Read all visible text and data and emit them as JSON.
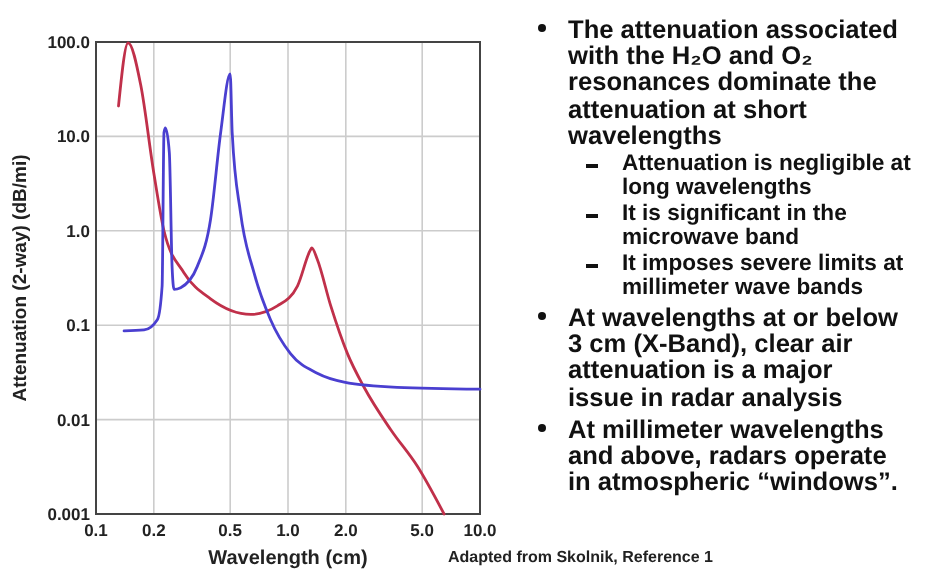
{
  "chart_data": {
    "type": "line",
    "xlabel": "Wavelength (cm)",
    "ylabel": "Attenuation (2-way) (dB/mi)",
    "log": "xy",
    "grid": true,
    "marker": "none",
    "line_style": "solid",
    "xlim": [
      0.1,
      10
    ],
    "ylim": [
      0.001,
      100
    ],
    "xticks": [
      0.1,
      0.2,
      0.5,
      {
        "value": 1,
        "label": "1.0"
      },
      {
        "value": 2,
        "label": "2.0"
      },
      {
        "value": 5,
        "label": "5.0"
      },
      {
        "value": 10,
        "label": "10.0"
      }
    ],
    "yticks": [
      0.001,
      0.01,
      0.1,
      {
        "value": 1,
        "label": "1.0"
      },
      {
        "value": 10,
        "label": "10.0"
      },
      {
        "value": 100,
        "label": "100.0"
      }
    ],
    "series": [
      {
        "color": "#c0304a",
        "x": [
          0.131,
          0.147,
          0.171,
          0.2,
          0.226,
          0.287,
          0.395,
          0.64,
          0.88,
          1.12,
          1.31,
          1.33,
          1.42,
          1.67,
          2.04,
          2.49,
          3.43,
          4.72,
          6.5
        ],
        "values": [
          21,
          98,
          35,
          4.1,
          1.0,
          0.36,
          0.19,
          0.13,
          0.16,
          0.26,
          0.63,
          0.66,
          0.5,
          0.16,
          0.05,
          0.022,
          0.0078,
          0.0032,
          0.001
        ]
      },
      {
        "color": "#4a3fd0",
        "x": [
          0.14,
          0.178,
          0.209,
          0.221,
          0.226,
          0.23,
          0.241,
          0.249,
          0.255,
          0.276,
          0.337,
          0.395,
          0.446,
          0.5,
          0.512,
          0.566,
          0.665,
          0.81,
          1.03,
          1.42,
          1.96,
          3.7,
          10
        ],
        "values": [
          0.087,
          0.089,
          0.115,
          0.26,
          11,
          12.3,
          6.7,
          0.42,
          0.24,
          0.25,
          0.42,
          1.32,
          11,
          46,
          11,
          1.55,
          0.36,
          0.115,
          0.05,
          0.031,
          0.025,
          0.022,
          0.021
        ]
      }
    ],
    "annotations": [
      "The attenuation associated with the H₂O and O₂ resonances dominate the attenuation at short wavelengths",
      "Attenuation is negligible at long wavelengths",
      "It is significant in the microwave band",
      "It imposes severe limits at millimeter wave bands",
      "At wavelengths at or below 3 cm (X-Band), clear air attenuation is a major issue in radar analysis",
      "At millimeter wavelengths and above, radars operate in atmospheric “windows”.",
      "Adapted from Skolnik, Reference 1"
    ]
  }
}
